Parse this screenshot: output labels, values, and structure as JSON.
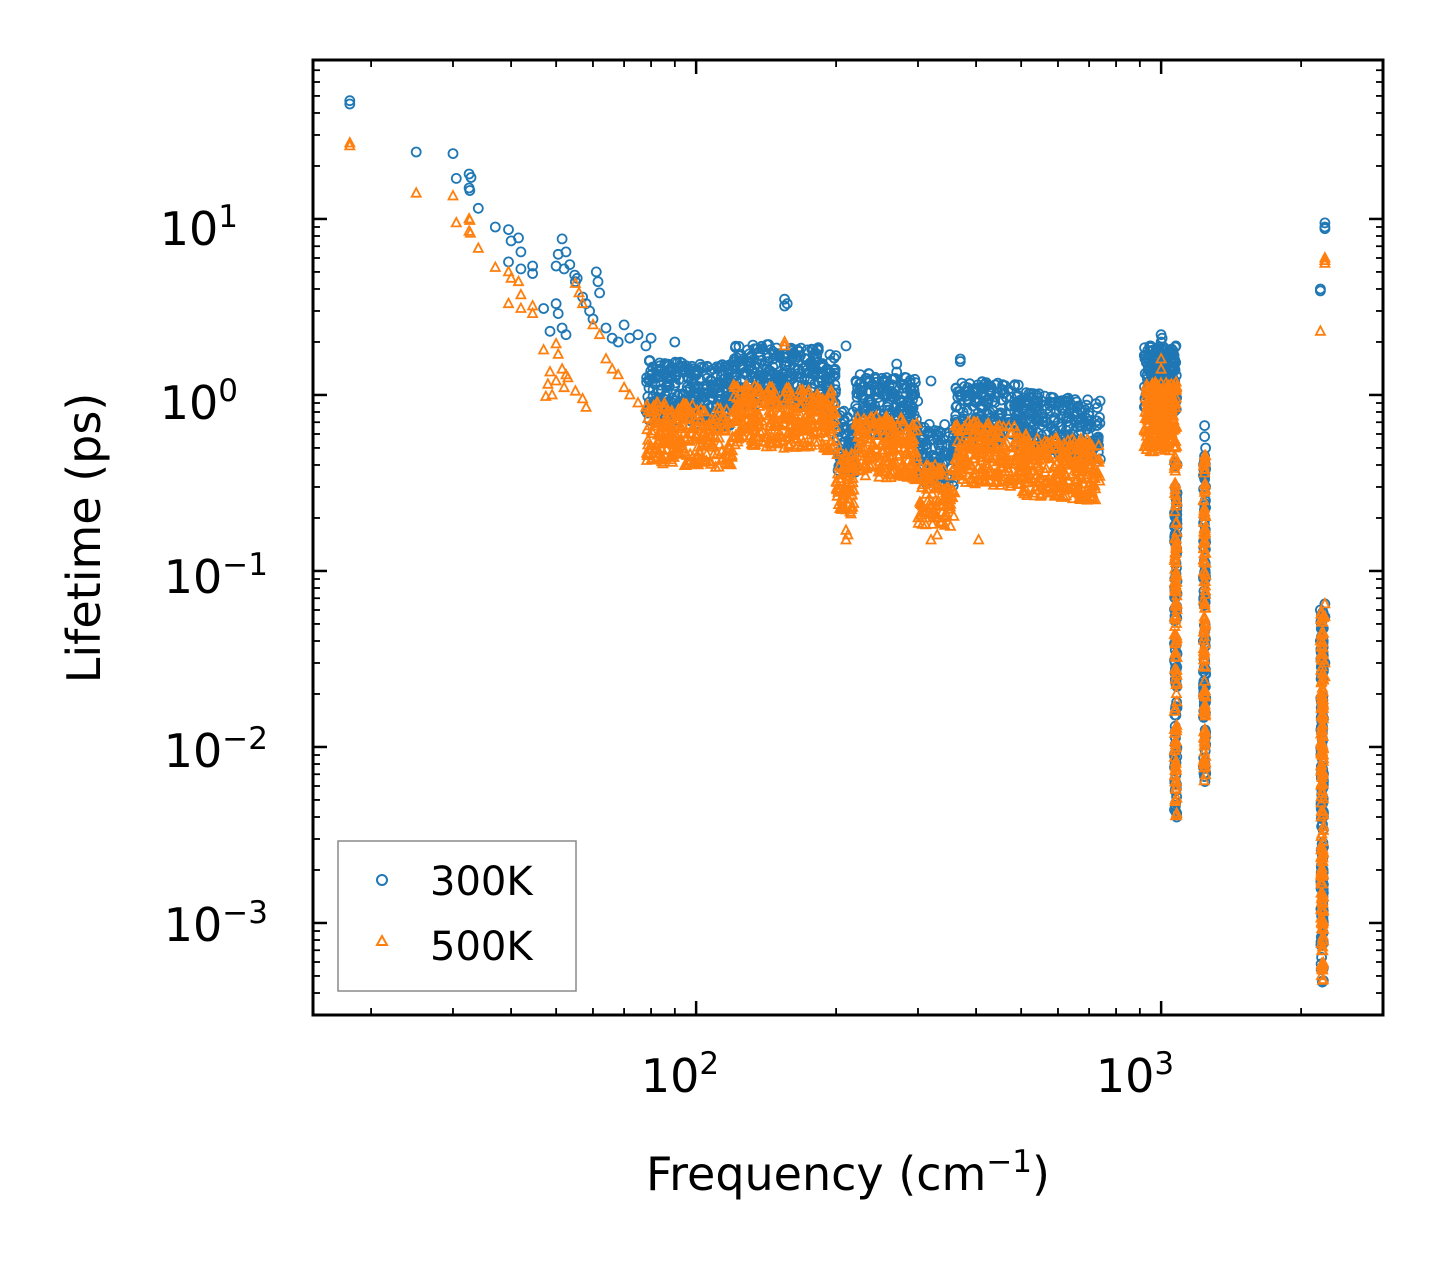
{
  "chart_data": {
    "type": "scatter",
    "title": "",
    "xlabel": "Frequency (cm",
    "xlabel_sup": "−1",
    "xlabel_suffix": ")",
    "ylabel": "Lifetime (ps)",
    "x_scale": "log",
    "y_scale": "log",
    "xlim": [
      15,
      3000
    ],
    "ylim": [
      0.0003,
      80
    ],
    "x_ticks": [
      {
        "base": "10",
        "exp": "2",
        "value": 100
      },
      {
        "base": "10",
        "exp": "3",
        "value": 1000
      }
    ],
    "y_ticks": [
      {
        "base": "10",
        "exp": "1",
        "value": 10
      },
      {
        "base": "10",
        "exp": "0",
        "value": 1
      },
      {
        "base": "10",
        "exp": "−1",
        "value": 0.1
      },
      {
        "base": "10",
        "exp": "−2",
        "value": 0.01
      },
      {
        "base": "10",
        "exp": "−3",
        "value": 0.001
      }
    ],
    "legend_position": "lower-left",
    "series": [
      {
        "name": "300K",
        "marker": "circle",
        "color": "#1f77b4",
        "points": [
          [
            18,
            47
          ],
          [
            18,
            45
          ],
          [
            25,
            24
          ],
          [
            30,
            23.5
          ],
          [
            30.5,
            17
          ],
          [
            32.5,
            18
          ],
          [
            32.8,
            17.2
          ],
          [
            32.5,
            15
          ],
          [
            32.6,
            14.5
          ],
          [
            34,
            11.5
          ],
          [
            37,
            9
          ],
          [
            39.5,
            8.7
          ],
          [
            40,
            7.5
          ],
          [
            41.5,
            7.8
          ],
          [
            42,
            6.5
          ],
          [
            39.5,
            5.7
          ],
          [
            42,
            5.2
          ],
          [
            44.5,
            5.4
          ],
          [
            44.5,
            4.9
          ],
          [
            47,
            3.1
          ],
          [
            48.5,
            2.3
          ],
          [
            50,
            3.3
          ],
          [
            50.5,
            2.9
          ],
          [
            51.5,
            2.4
          ],
          [
            52.5,
            2.2
          ],
          [
            50,
            5.4
          ],
          [
            50.5,
            6.3
          ],
          [
            51.5,
            7.7
          ],
          [
            52,
            5.2
          ],
          [
            52.5,
            6.5
          ],
          [
            53.5,
            5.5
          ],
          [
            54.8,
            4.8
          ],
          [
            55,
            4.4
          ],
          [
            55.5,
            4.6
          ],
          [
            57,
            3.6
          ],
          [
            58,
            3.3
          ],
          [
            59,
            3.0
          ],
          [
            60,
            2.7
          ],
          [
            61,
            5.0
          ],
          [
            61.5,
            4.4
          ],
          [
            62,
            3.8
          ],
          [
            64,
            2.4
          ],
          [
            66,
            2.1
          ],
          [
            68,
            2.0
          ],
          [
            70,
            2.5
          ],
          [
            72,
            2.1
          ],
          [
            75,
            2.2
          ],
          [
            78,
            1.9
          ],
          [
            80,
            2.1
          ],
          [
            90,
            2.0
          ],
          [
            155,
            3.5
          ],
          [
            155,
            3.2
          ],
          [
            157,
            3.3
          ],
          [
            210,
            1.9
          ],
          [
            270,
            1.5
          ],
          [
            270,
            1.35
          ],
          [
            320,
            1.2
          ],
          [
            370,
            1.6
          ],
          [
            370,
            1.55
          ],
          [
            1000,
            2.2
          ],
          [
            1000,
            2.0
          ],
          [
            1005,
            2.1
          ],
          [
            1060,
            1.6
          ],
          [
            1065,
            1.4
          ],
          [
            1080,
            0.004
          ],
          [
            1080,
            0.0042
          ],
          [
            1240,
            0.67
          ],
          [
            1240,
            0.58
          ],
          [
            1240,
            0.45
          ],
          [
            1240,
            0.38
          ],
          [
            2200,
            4.0
          ],
          [
            2200,
            3.9
          ],
          [
            2250,
            9.5
          ],
          [
            2250,
            9.0
          ],
          [
            2250,
            8.8
          ],
          [
            2200,
            0.06
          ],
          [
            2250,
            0.065
          ],
          [
            2250,
            0.055
          ],
          [
            2200,
            0.04
          ],
          [
            2250,
            0.03
          ]
        ]
      },
      {
        "name": "500K",
        "marker": "triangle",
        "color": "#ff7f0e",
        "points": [
          [
            18,
            27
          ],
          [
            18,
            26
          ],
          [
            25,
            14
          ],
          [
            30,
            13.5
          ],
          [
            30.5,
            9.5
          ],
          [
            32.5,
            10
          ],
          [
            32.6,
            9.8
          ],
          [
            32.5,
            8.5
          ],
          [
            32.7,
            8.3
          ],
          [
            34,
            6.8
          ],
          [
            37,
            5.3
          ],
          [
            39.5,
            5.0
          ],
          [
            40,
            4.6
          ],
          [
            41.5,
            4.4
          ],
          [
            42,
            3.7
          ],
          [
            39.5,
            3.3
          ],
          [
            42,
            3.1
          ],
          [
            44.5,
            3.2
          ],
          [
            44.5,
            2.9
          ],
          [
            47,
            1.8
          ],
          [
            48.5,
            1.35
          ],
          [
            50,
            1.95
          ],
          [
            50.5,
            1.7
          ],
          [
            51.5,
            1.4
          ],
          [
            52.5,
            1.3
          ],
          [
            48,
            1.15
          ],
          [
            49,
            1.0
          ],
          [
            50,
            1.2
          ],
          [
            52,
            1.1
          ],
          [
            53,
            1.25
          ],
          [
            55,
            1.05
          ],
          [
            57,
            0.95
          ],
          [
            58,
            0.85
          ],
          [
            47.5,
            0.98
          ],
          [
            55,
            4.3
          ],
          [
            56,
            3.8
          ],
          [
            57,
            3.3
          ],
          [
            60,
            2.5
          ],
          [
            62,
            2.2
          ],
          [
            64,
            1.6
          ],
          [
            66,
            1.4
          ],
          [
            68,
            1.3
          ],
          [
            70,
            1.1
          ],
          [
            72,
            1.0
          ],
          [
            75,
            0.9
          ],
          [
            78,
            0.85
          ],
          [
            80,
            0.8
          ],
          [
            155,
            2.0
          ],
          [
            155,
            1.9
          ],
          [
            210,
            0.15
          ],
          [
            210,
            0.17
          ],
          [
            212,
            0.16
          ],
          [
            320,
            0.15
          ],
          [
            330,
            0.16
          ],
          [
            405,
            0.15
          ],
          [
            1000,
            1.6
          ],
          [
            1000,
            1.4
          ],
          [
            1080,
            0.0042
          ],
          [
            1240,
            0.45
          ],
          [
            1240,
            0.36
          ],
          [
            1240,
            0.28
          ],
          [
            2200,
            2.3
          ],
          [
            2250,
            6.0
          ],
          [
            2250,
            5.6
          ],
          [
            2250,
            5.8
          ],
          [
            2250,
            0.065
          ],
          [
            2250,
            0.055
          ],
          [
            2200,
            0.04
          ],
          [
            2250,
            0.03
          ],
          [
            2250,
            0.025
          ]
        ]
      }
    ]
  }
}
